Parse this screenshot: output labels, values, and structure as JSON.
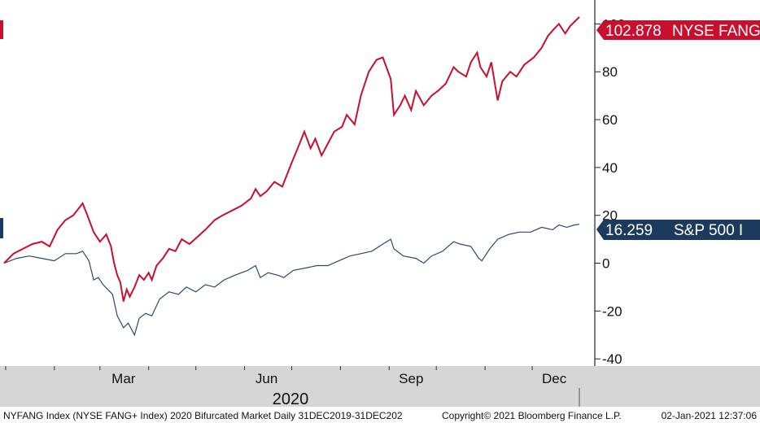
{
  "colors": {
    "fang": "#c8102e",
    "spx": "#2b4a68",
    "fang_tag_bg": "#c8102e",
    "spx_tag_bg": "#1c3a5e",
    "bottom_bar": "#d6d6d6",
    "axis": "#222222"
  },
  "chart_data": {
    "type": "line",
    "x_type": "date",
    "x_range": [
      "2019-12-31",
      "2020-12-31"
    ],
    "ylim": [
      -43,
      110
    ],
    "y_ticks": [
      -40,
      -20,
      0,
      20,
      40,
      60,
      80,
      100
    ],
    "x_month_labels": [
      {
        "label": "Mar",
        "date": "2020-03-16"
      },
      {
        "label": "Jun",
        "date": "2020-06-15"
      },
      {
        "label": "Sep",
        "date": "2020-09-15"
      },
      {
        "label": "Dec",
        "date": "2020-12-15"
      }
    ],
    "year_label": "2020",
    "series": [
      {
        "name": "NYSE FANG",
        "last_value_label": "102.878",
        "points": [
          [
            "2019-12-31",
            0
          ],
          [
            "2020-01-06",
            4
          ],
          [
            "2020-01-12",
            6
          ],
          [
            "2020-01-18",
            8
          ],
          [
            "2020-01-24",
            9
          ],
          [
            "2020-01-29",
            7
          ],
          [
            "2020-02-03",
            14
          ],
          [
            "2020-02-08",
            18
          ],
          [
            "2020-02-13",
            20
          ],
          [
            "2020-02-19",
            25
          ],
          [
            "2020-02-22",
            20
          ],
          [
            "2020-02-26",
            13
          ],
          [
            "2020-03-01",
            9
          ],
          [
            "2020-03-05",
            12
          ],
          [
            "2020-03-08",
            7
          ],
          [
            "2020-03-10",
            0
          ],
          [
            "2020-03-12",
            -5
          ],
          [
            "2020-03-14",
            -8
          ],
          [
            "2020-03-16",
            -16
          ],
          [
            "2020-03-18",
            -11
          ],
          [
            "2020-03-20",
            -14
          ],
          [
            "2020-03-23",
            -10
          ],
          [
            "2020-03-26",
            -5
          ],
          [
            "2020-03-29",
            -7
          ],
          [
            "2020-04-01",
            -4
          ],
          [
            "2020-04-03",
            -7
          ],
          [
            "2020-04-06",
            -1
          ],
          [
            "2020-04-10",
            2
          ],
          [
            "2020-04-14",
            6
          ],
          [
            "2020-04-18",
            5
          ],
          [
            "2020-04-22",
            10
          ],
          [
            "2020-04-27",
            8
          ],
          [
            "2020-05-02",
            11
          ],
          [
            "2020-05-07",
            14
          ],
          [
            "2020-05-13",
            18
          ],
          [
            "2020-05-18",
            20
          ],
          [
            "2020-05-24",
            22
          ],
          [
            "2020-05-30",
            24
          ],
          [
            "2020-06-05",
            27
          ],
          [
            "2020-06-08",
            31
          ],
          [
            "2020-06-11",
            28
          ],
          [
            "2020-06-15",
            30
          ],
          [
            "2020-06-20",
            34
          ],
          [
            "2020-06-25",
            32
          ],
          [
            "2020-07-01",
            42
          ],
          [
            "2020-07-06",
            50
          ],
          [
            "2020-07-09",
            55
          ],
          [
            "2020-07-13",
            48
          ],
          [
            "2020-07-16",
            52
          ],
          [
            "2020-07-20",
            45
          ],
          [
            "2020-07-24",
            50
          ],
          [
            "2020-07-28",
            55
          ],
          [
            "2020-08-02",
            57
          ],
          [
            "2020-08-05",
            62
          ],
          [
            "2020-08-10",
            58
          ],
          [
            "2020-08-14",
            70
          ],
          [
            "2020-08-19",
            80
          ],
          [
            "2020-08-24",
            85
          ],
          [
            "2020-08-28",
            86
          ],
          [
            "2020-09-02",
            77
          ],
          [
            "2020-09-04",
            62
          ],
          [
            "2020-09-08",
            66
          ],
          [
            "2020-09-11",
            70
          ],
          [
            "2020-09-15",
            64
          ],
          [
            "2020-09-18",
            72
          ],
          [
            "2020-09-23",
            66
          ],
          [
            "2020-09-28",
            70
          ],
          [
            "2020-10-02",
            72
          ],
          [
            "2020-10-07",
            75
          ],
          [
            "2020-10-12",
            82
          ],
          [
            "2020-10-15",
            80
          ],
          [
            "2020-10-20",
            78
          ],
          [
            "2020-10-23",
            84
          ],
          [
            "2020-10-27",
            88
          ],
          [
            "2020-10-29",
            82
          ],
          [
            "2020-11-02",
            78
          ],
          [
            "2020-11-05",
            84
          ],
          [
            "2020-11-09",
            68
          ],
          [
            "2020-11-12",
            76
          ],
          [
            "2020-11-17",
            80
          ],
          [
            "2020-11-21",
            78
          ],
          [
            "2020-11-26",
            83
          ],
          [
            "2020-12-02",
            86
          ],
          [
            "2020-12-07",
            90
          ],
          [
            "2020-12-11",
            95
          ],
          [
            "2020-12-15",
            98
          ],
          [
            "2020-12-18",
            100
          ],
          [
            "2020-12-22",
            96
          ],
          [
            "2020-12-25",
            99
          ],
          [
            "2020-12-28",
            101
          ],
          [
            "2020-12-31",
            102.878
          ]
        ]
      },
      {
        "name": "S&P 500 I",
        "last_value_label": "16.259",
        "points": [
          [
            "2019-12-31",
            0
          ],
          [
            "2020-01-08",
            2
          ],
          [
            "2020-01-16",
            3
          ],
          [
            "2020-01-24",
            2
          ],
          [
            "2020-02-01",
            1
          ],
          [
            "2020-02-08",
            4
          ],
          [
            "2020-02-15",
            4
          ],
          [
            "2020-02-19",
            5
          ],
          [
            "2020-02-23",
            1
          ],
          [
            "2020-02-26",
            -7
          ],
          [
            "2020-02-29",
            -6
          ],
          [
            "2020-03-03",
            -9
          ],
          [
            "2020-03-06",
            -11
          ],
          [
            "2020-03-09",
            -13
          ],
          [
            "2020-03-12",
            -22
          ],
          [
            "2020-03-16",
            -27
          ],
          [
            "2020-03-19",
            -25
          ],
          [
            "2020-03-23",
            -30
          ],
          [
            "2020-03-26",
            -23
          ],
          [
            "2020-03-30",
            -21
          ],
          [
            "2020-04-03",
            -22
          ],
          [
            "2020-04-08",
            -15
          ],
          [
            "2020-04-14",
            -12
          ],
          [
            "2020-04-20",
            -13
          ],
          [
            "2020-04-25",
            -10
          ],
          [
            "2020-05-01",
            -12
          ],
          [
            "2020-05-07",
            -9
          ],
          [
            "2020-05-13",
            -10
          ],
          [
            "2020-05-19",
            -7
          ],
          [
            "2020-05-26",
            -5
          ],
          [
            "2020-06-03",
            -3
          ],
          [
            "2020-06-08",
            -1
          ],
          [
            "2020-06-11",
            -6
          ],
          [
            "2020-06-16",
            -4
          ],
          [
            "2020-06-22",
            -5
          ],
          [
            "2020-06-26",
            -6
          ],
          [
            "2020-07-02",
            -3
          ],
          [
            "2020-07-10",
            -2
          ],
          [
            "2020-07-17",
            -1
          ],
          [
            "2020-07-24",
            -1
          ],
          [
            "2020-07-31",
            1
          ],
          [
            "2020-08-07",
            3
          ],
          [
            "2020-08-14",
            4
          ],
          [
            "2020-08-21",
            5
          ],
          [
            "2020-08-28",
            8
          ],
          [
            "2020-09-02",
            10
          ],
          [
            "2020-09-04",
            6
          ],
          [
            "2020-09-10",
            3
          ],
          [
            "2020-09-18",
            2
          ],
          [
            "2020-09-23",
            0
          ],
          [
            "2020-09-28",
            3
          ],
          [
            "2020-10-05",
            5
          ],
          [
            "2020-10-12",
            9
          ],
          [
            "2020-10-16",
            8
          ],
          [
            "2020-10-23",
            7
          ],
          [
            "2020-10-28",
            2
          ],
          [
            "2020-10-30",
            1
          ],
          [
            "2020-11-04",
            6
          ],
          [
            "2020-11-09",
            10
          ],
          [
            "2020-11-16",
            12
          ],
          [
            "2020-11-23",
            13
          ],
          [
            "2020-11-30",
            13
          ],
          [
            "2020-12-07",
            15
          ],
          [
            "2020-12-14",
            14
          ],
          [
            "2020-12-18",
            16
          ],
          [
            "2020-12-23",
            15
          ],
          [
            "2020-12-28",
            16
          ],
          [
            "2020-12-31",
            16.259
          ]
        ]
      }
    ]
  },
  "footer": {
    "source": "NYFANG Index (NYSE FANG+ Index) 2020 Bifurcated Market  Daily 31DEC2019-31DEC202",
    "copyright": "Copyright© 2021 Bloomberg Finance L.P.",
    "timestamp": "02-Jan-2021 12:37:06"
  }
}
